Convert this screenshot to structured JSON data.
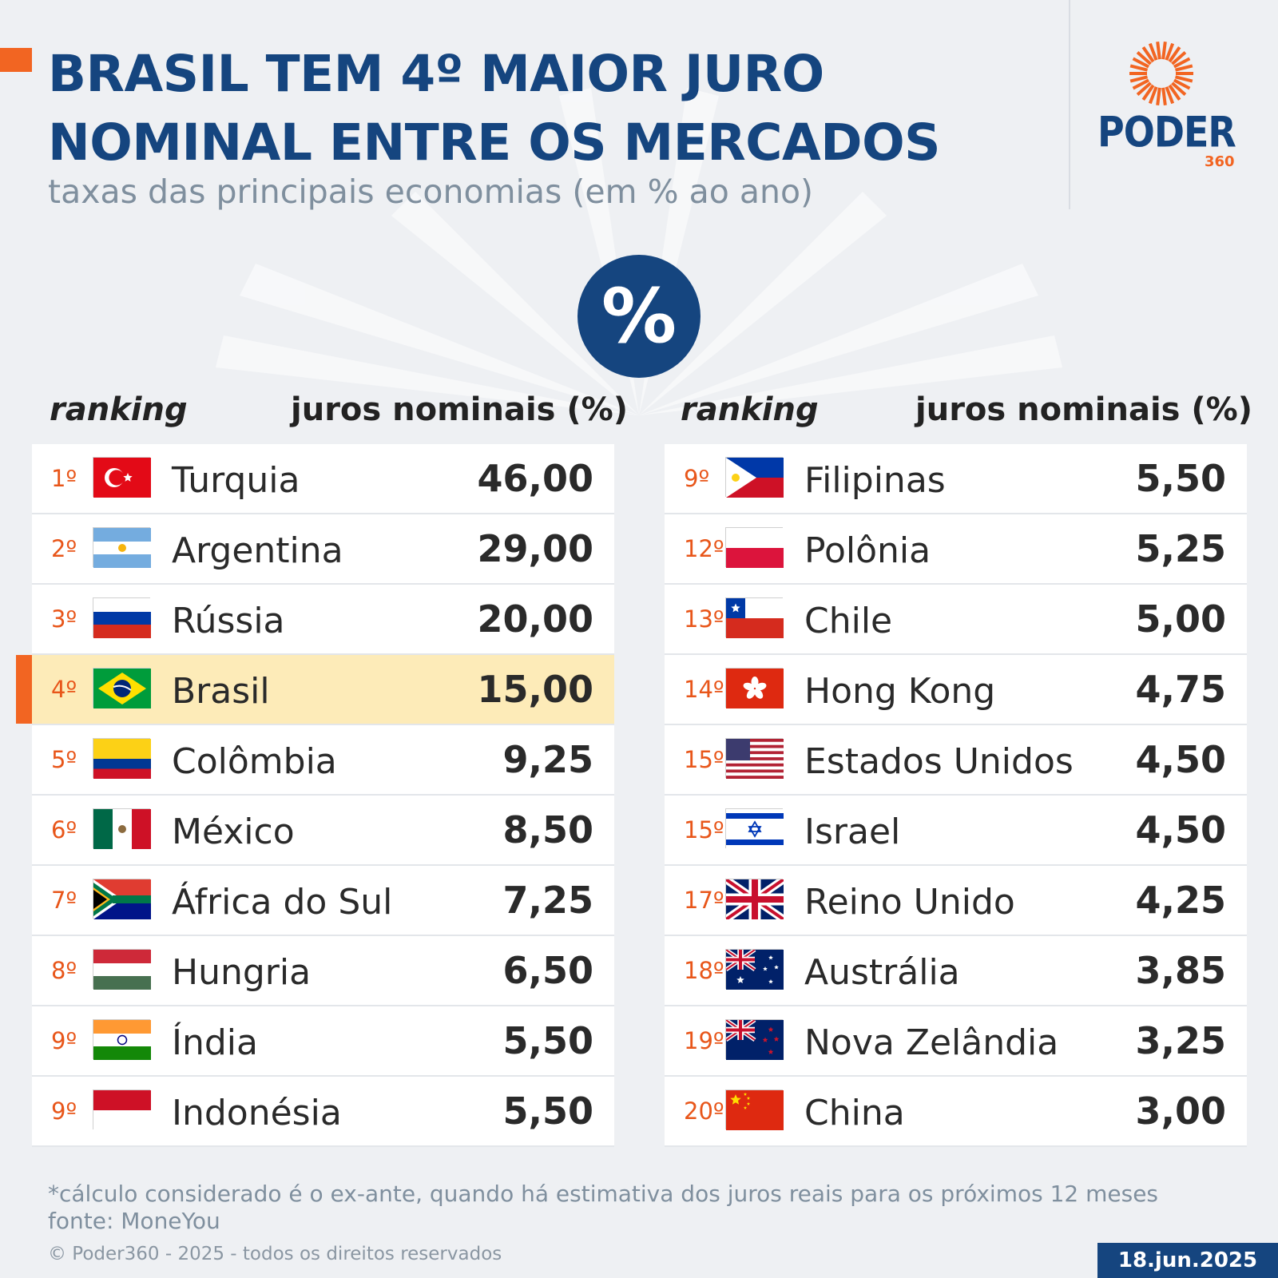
{
  "header": {
    "title_line1": "BRASIL TEM 4º MAIOR JURO",
    "title_line2": "NOMINAL ENTRE OS MERCADOS",
    "subtitle": "taxas das principais economias (em % ao ano)"
  },
  "logo": {
    "text": "PODER",
    "number": "360",
    "icon": "sun-icon",
    "color": "#15457f",
    "accent": "#f26522"
  },
  "badge": {
    "symbol": "%",
    "icon": "percent-icon"
  },
  "columns": {
    "left": {
      "rank_header": "ranking",
      "value_header": "juros nominais (%)"
    },
    "right": {
      "rank_header": "ranking",
      "value_header": "juros nominais (%)"
    }
  },
  "chart_data": {
    "type": "table",
    "title": "BRASIL TEM 4º MAIOR JURO NOMINAL ENTRE OS MERCADOS",
    "subtitle": "taxas das principais economias (em % ao ano)",
    "columns": [
      "ranking",
      "juros nominais (%)"
    ],
    "highlight": "Brasil",
    "rows": [
      {
        "rank": "1º",
        "country": "Turquia",
        "value": "46,00",
        "flag": "tr"
      },
      {
        "rank": "2º",
        "country": "Argentina",
        "value": "29,00",
        "flag": "ar"
      },
      {
        "rank": "3º",
        "country": "Rússia",
        "value": "20,00",
        "flag": "ru"
      },
      {
        "rank": "4º",
        "country": "Brasil",
        "value": "15,00",
        "flag": "br"
      },
      {
        "rank": "5º",
        "country": "Colômbia",
        "value": "9,25",
        "flag": "co"
      },
      {
        "rank": "6º",
        "country": "México",
        "value": "8,50",
        "flag": "mx"
      },
      {
        "rank": "7º",
        "country": "África do Sul",
        "value": "7,25",
        "flag": "za"
      },
      {
        "rank": "8º",
        "country": "Hungria",
        "value": "6,50",
        "flag": "hu"
      },
      {
        "rank": "9º",
        "country": "Índia",
        "value": "5,50",
        "flag": "in"
      },
      {
        "rank": "9º",
        "country": "Indonésia",
        "value": "5,50",
        "flag": "id"
      },
      {
        "rank": "9º",
        "country": "Filipinas",
        "value": "5,50",
        "flag": "ph"
      },
      {
        "rank": "12º",
        "country": "Polônia",
        "value": "5,25",
        "flag": "pl"
      },
      {
        "rank": "13º",
        "country": "Chile",
        "value": "5,00",
        "flag": "cl"
      },
      {
        "rank": "14º",
        "country": "Hong Kong",
        "value": "4,75",
        "flag": "hk"
      },
      {
        "rank": "15º",
        "country": "Estados Unidos",
        "value": "4,50",
        "flag": "us"
      },
      {
        "rank": "15º",
        "country": "Israel",
        "value": "4,50",
        "flag": "il"
      },
      {
        "rank": "17º",
        "country": "Reino Unido",
        "value": "4,25",
        "flag": "gb"
      },
      {
        "rank": "18º",
        "country": "Austrália",
        "value": "3,85",
        "flag": "au"
      },
      {
        "rank": "19º",
        "country": "Nova Zelândia",
        "value": "3,25",
        "flag": "nz"
      },
      {
        "rank": "20º",
        "country": "China",
        "value": "3,00",
        "flag": "cn"
      }
    ]
  },
  "footer": {
    "note": "*cálculo considerado é o ex-ante, quando há estimativa dos juros reais para os próximos 12 meses",
    "source": "fonte: MoneYou",
    "copyright": "© Poder360 - 2025 - todos os direitos reservados",
    "date": "18.jun.2025"
  },
  "colors": {
    "navy": "#15457f",
    "orange": "#f26522",
    "highlight_row": "#fdebb8",
    "background": "#eef0f3"
  }
}
